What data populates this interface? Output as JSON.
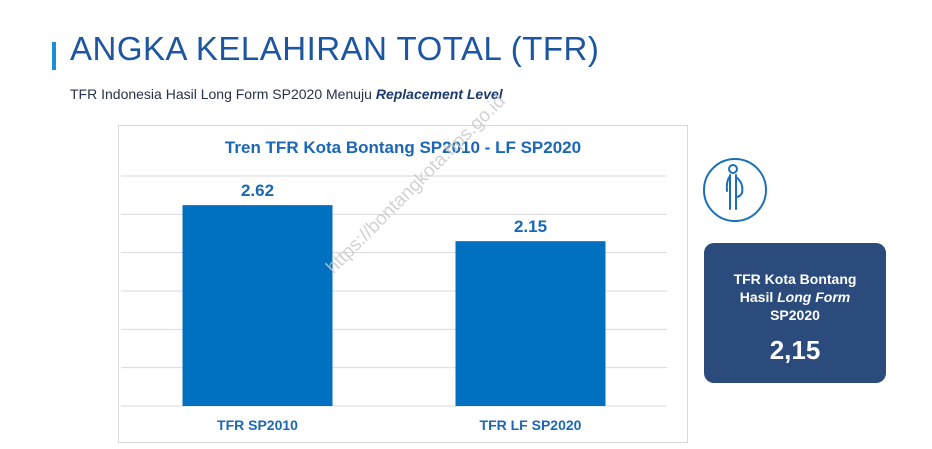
{
  "header": {
    "title": "ANGKA KELAHIRAN TOTAL (TFR)",
    "subtitle_prefix": "TFR Indonesia Hasil Long Form SP2020 Menuju ",
    "subtitle_emphasis": "Replacement Level"
  },
  "chart_data": {
    "type": "bar",
    "title": "Tren TFR Kota Bontang SP2010 - LF SP2020",
    "categories": [
      "TFR SP2010",
      "TFR LF SP2020"
    ],
    "values": [
      2.62,
      2.15
    ],
    "data_labels": [
      "2.62",
      "2.15"
    ],
    "xlabel": "",
    "ylabel": "",
    "ylim": [
      0,
      3.0
    ],
    "grid": true,
    "bar_color": "#0070c0",
    "label_color": "#1a67b8"
  },
  "watermark": "https://bontangkota.bps.go.id",
  "card": {
    "label_line1": "TFR Kota Bontang",
    "label_line2_prefix": "Hasil ",
    "label_line2_emphasis": "Long Form",
    "label_line3": "SP2020",
    "value": "2,15",
    "background": "#2a4b7c"
  },
  "icons": {
    "person": "pregnant-woman-icon"
  },
  "colors": {
    "title": "#1d56a0",
    "accent": "#1a8fd8"
  }
}
